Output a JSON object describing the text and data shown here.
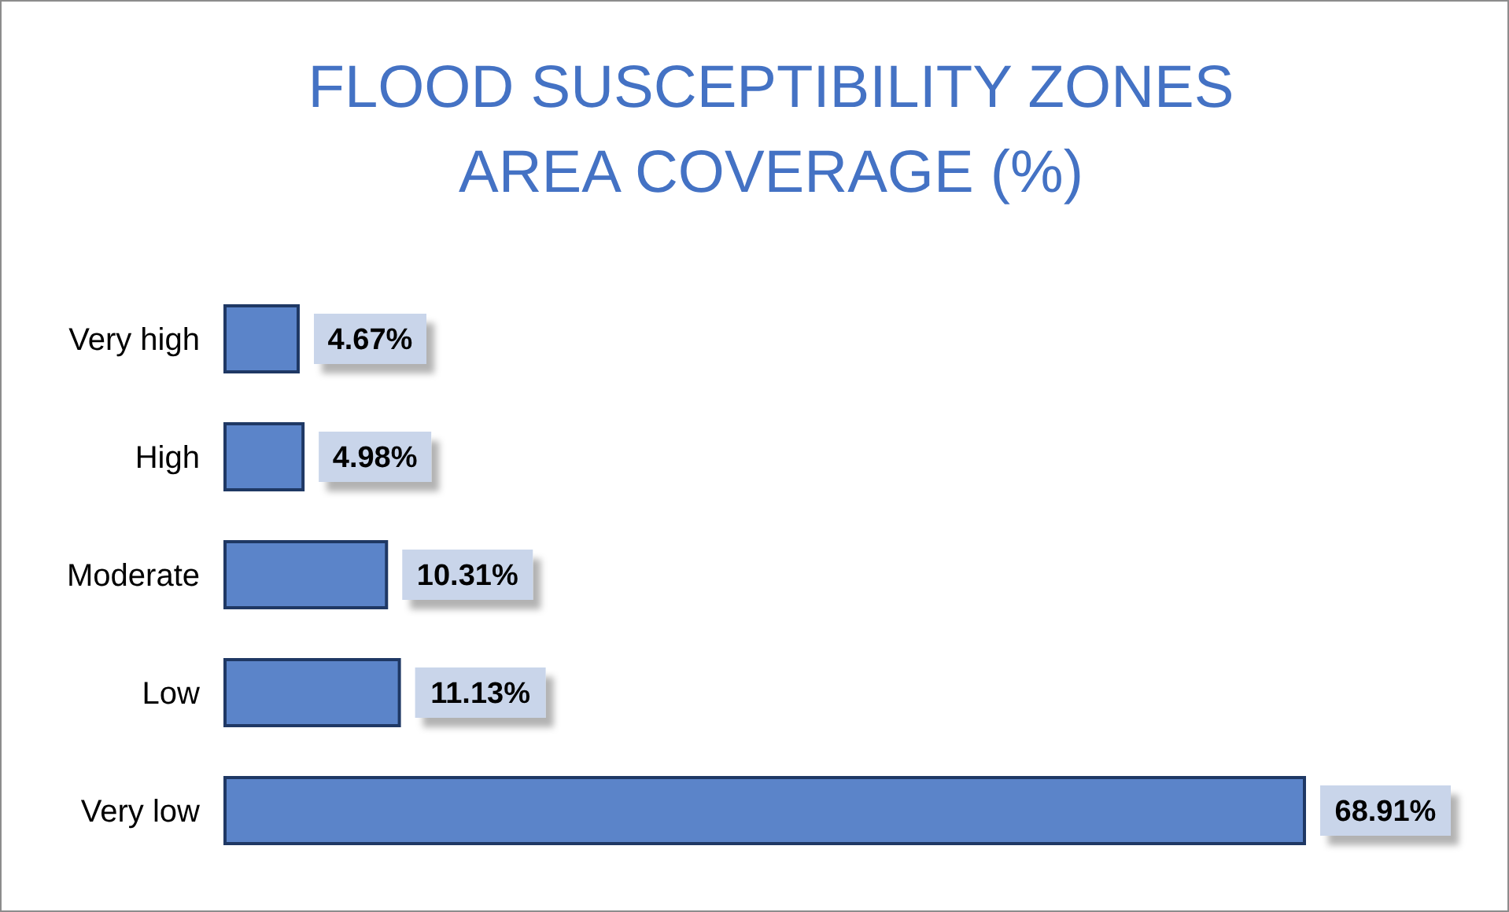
{
  "chart_data": {
    "type": "bar",
    "orientation": "horizontal",
    "title": "FLOOD SUSCEPTIBILITY ZONES\nAREA COVERAGE (%)",
    "categories": [
      "Very high",
      "High",
      "Moderate",
      "Low",
      "Very low"
    ],
    "values": [
      4.67,
      4.98,
      10.31,
      11.13,
      68.91
    ],
    "value_labels": [
      "4.67%",
      "4.98%",
      "10.31%",
      "11.13%",
      "68.91%"
    ],
    "color": "#5b84c9",
    "grid": false,
    "tick_labels": "y"
  }
}
